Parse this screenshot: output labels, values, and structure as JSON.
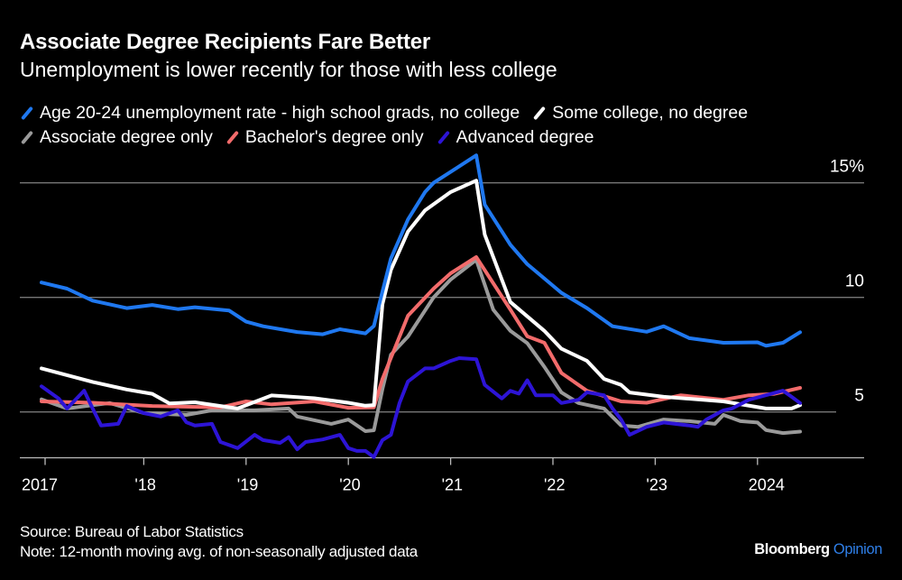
{
  "chart_data": {
    "type": "line",
    "title": "Associate Degree Recipients Fare Better",
    "subtitle": "Unemployment is lower recently for those with less college",
    "ylim": [
      3,
      15.5
    ],
    "y_ticks": [
      {
        "value": 15,
        "label": "15%"
      },
      {
        "value": 10,
        "label": "10"
      },
      {
        "value": 5,
        "label": "5"
      }
    ],
    "x_ticks": [
      {
        "date": "2017-01",
        "label": "2017"
      },
      {
        "date": "2018-01",
        "label": "'18"
      },
      {
        "date": "2019-01",
        "label": "'19"
      },
      {
        "date": "2020-01",
        "label": "'20"
      },
      {
        "date": "2021-01",
        "label": "'21"
      },
      {
        "date": "2022-01",
        "label": "'22"
      },
      {
        "date": "2023-01",
        "label": "'23"
      },
      {
        "date": "2024-01",
        "label": "2024"
      }
    ],
    "grid": true,
    "legend_placement": "top-left",
    "series": [
      {
        "name": "Age 20-24 unemployment rate - high school grads, no college",
        "color": "#1f78f0",
        "points": [
          [
            "2017-01",
            10.65
          ],
          [
            "2017-04",
            10.38
          ],
          [
            "2017-07",
            9.86
          ],
          [
            "2017-11",
            9.53
          ],
          [
            "2018-02",
            9.67
          ],
          [
            "2018-05",
            9.49
          ],
          [
            "2018-07",
            9.57
          ],
          [
            "2018-11",
            9.43
          ],
          [
            "2019-01",
            8.94
          ],
          [
            "2019-03",
            8.74
          ],
          [
            "2019-07",
            8.49
          ],
          [
            "2019-10",
            8.39
          ],
          [
            "2019-12",
            8.61
          ],
          [
            "2020-03",
            8.43
          ],
          [
            "2020-04",
            8.75
          ],
          [
            "2020-05",
            10.26
          ],
          [
            "2020-06",
            11.7
          ],
          [
            "2020-08",
            13.4
          ],
          [
            "2020-10",
            14.6
          ],
          [
            "2020-11",
            15.0
          ],
          [
            "2021-04",
            16.2
          ],
          [
            "2021-05",
            14.05
          ],
          [
            "2021-08",
            12.3
          ],
          [
            "2021-10",
            11.45
          ],
          [
            "2022-02",
            10.2
          ],
          [
            "2022-05",
            9.53
          ],
          [
            "2022-08",
            8.74
          ],
          [
            "2022-12",
            8.5
          ],
          [
            "2023-02",
            8.74
          ],
          [
            "2023-05",
            8.22
          ],
          [
            "2023-09",
            8.02
          ],
          [
            "2024-01",
            8.04
          ],
          [
            "2024-02",
            7.89
          ],
          [
            "2024-04",
            8.02
          ],
          [
            "2024-06",
            8.48
          ]
        ]
      },
      {
        "name": "Some college, no degree",
        "color": "#ffffff",
        "points": [
          [
            "2017-01",
            6.9
          ],
          [
            "2017-07",
            6.31
          ],
          [
            "2017-11",
            5.98
          ],
          [
            "2018-02",
            5.79
          ],
          [
            "2018-04",
            5.37
          ],
          [
            "2018-07",
            5.42
          ],
          [
            "2018-12",
            5.15
          ],
          [
            "2019-04",
            5.72
          ],
          [
            "2019-09",
            5.6
          ],
          [
            "2020-01",
            5.4
          ],
          [
            "2020-03",
            5.27
          ],
          [
            "2020-04",
            5.3
          ],
          [
            "2020-05",
            9.7
          ],
          [
            "2020-06",
            11.2
          ],
          [
            "2020-08",
            12.87
          ],
          [
            "2020-10",
            13.8
          ],
          [
            "2021-01",
            14.6
          ],
          [
            "2021-04",
            15.1
          ],
          [
            "2021-05",
            12.74
          ],
          [
            "2021-08",
            9.8
          ],
          [
            "2021-12",
            8.54
          ],
          [
            "2022-02",
            7.76
          ],
          [
            "2022-05",
            7.23
          ],
          [
            "2022-07",
            6.44
          ],
          [
            "2022-09",
            6.18
          ],
          [
            "2022-10",
            5.85
          ],
          [
            "2023-02",
            5.66
          ],
          [
            "2023-09",
            5.46
          ],
          [
            "2024-02",
            5.15
          ],
          [
            "2024-05",
            5.15
          ],
          [
            "2024-06",
            5.3
          ]
        ]
      },
      {
        "name": "Associate degree only",
        "color": "#9a9a9a",
        "points": [
          [
            "2017-01",
            5.55
          ],
          [
            "2017-04",
            5.15
          ],
          [
            "2017-09",
            5.39
          ],
          [
            "2018-01",
            4.95
          ],
          [
            "2018-06",
            4.87
          ],
          [
            "2018-09",
            5.07
          ],
          [
            "2019-02",
            5.07
          ],
          [
            "2019-06",
            5.15
          ],
          [
            "2019-07",
            4.8
          ],
          [
            "2019-11",
            4.48
          ],
          [
            "2020-01",
            4.67
          ],
          [
            "2020-03",
            4.16
          ],
          [
            "2020-04",
            4.2
          ],
          [
            "2020-05",
            6.0
          ],
          [
            "2020-06",
            7.5
          ],
          [
            "2020-08",
            8.29
          ],
          [
            "2020-11",
            10.0
          ],
          [
            "2021-01",
            10.78
          ],
          [
            "2021-04",
            11.64
          ],
          [
            "2021-06",
            9.47
          ],
          [
            "2021-08",
            8.54
          ],
          [
            "2021-10",
            8.0
          ],
          [
            "2021-12",
            6.97
          ],
          [
            "2022-02",
            5.85
          ],
          [
            "2022-04",
            5.39
          ],
          [
            "2022-07",
            5.15
          ],
          [
            "2022-09",
            4.41
          ],
          [
            "2022-11",
            4.35
          ],
          [
            "2023-02",
            4.67
          ],
          [
            "2023-05",
            4.6
          ],
          [
            "2023-08",
            4.48
          ],
          [
            "2023-09",
            4.87
          ],
          [
            "2023-11",
            4.6
          ],
          [
            "2024-01",
            4.54
          ],
          [
            "2024-02",
            4.21
          ],
          [
            "2024-04",
            4.08
          ],
          [
            "2024-06",
            4.14
          ]
        ]
      },
      {
        "name": "Bachelor's degree only",
        "color": "#f26b6b",
        "points": [
          [
            "2017-01",
            5.46
          ],
          [
            "2017-07",
            5.4
          ],
          [
            "2018-02",
            5.26
          ],
          [
            "2018-10",
            5.2
          ],
          [
            "2019-01",
            5.46
          ],
          [
            "2019-04",
            5.33
          ],
          [
            "2019-09",
            5.46
          ],
          [
            "2020-01",
            5.18
          ],
          [
            "2020-04",
            5.2
          ],
          [
            "2020-05",
            6.44
          ],
          [
            "2020-08",
            9.2
          ],
          [
            "2020-11",
            10.38
          ],
          [
            "2021-01",
            11.05
          ],
          [
            "2021-04",
            11.76
          ],
          [
            "2021-08",
            9.47
          ],
          [
            "2021-10",
            8.3
          ],
          [
            "2021-12",
            8.02
          ],
          [
            "2022-02",
            6.7
          ],
          [
            "2022-05",
            5.92
          ],
          [
            "2022-09",
            5.46
          ],
          [
            "2022-12",
            5.4
          ],
          [
            "2023-04",
            5.73
          ],
          [
            "2023-09",
            5.53
          ],
          [
            "2023-12",
            5.73
          ],
          [
            "2024-03",
            5.79
          ],
          [
            "2024-06",
            6.05
          ]
        ]
      },
      {
        "name": "Advanced degree",
        "color": "#2d14d6",
        "points": [
          [
            "2017-01",
            6.12
          ],
          [
            "2017-03",
            5.59
          ],
          [
            "2017-04",
            5.15
          ],
          [
            "2017-06",
            5.93
          ],
          [
            "2017-07",
            5.15
          ],
          [
            "2017-08",
            4.41
          ],
          [
            "2017-10",
            4.48
          ],
          [
            "2017-11",
            5.26
          ],
          [
            "2018-01",
            4.95
          ],
          [
            "2018-03",
            4.8
          ],
          [
            "2018-05",
            5.07
          ],
          [
            "2018-06",
            4.55
          ],
          [
            "2018-07",
            4.41
          ],
          [
            "2018-09",
            4.48
          ],
          [
            "2018-10",
            3.69
          ],
          [
            "2018-12",
            3.42
          ],
          [
            "2019-02",
            4.0
          ],
          [
            "2019-03",
            3.77
          ],
          [
            "2019-05",
            3.65
          ],
          [
            "2019-06",
            3.9
          ],
          [
            "2019-07",
            3.37
          ],
          [
            "2019-08",
            3.69
          ],
          [
            "2019-10",
            3.8
          ],
          [
            "2019-12",
            4.0
          ],
          [
            "2020-01",
            3.42
          ],
          [
            "2020-02",
            3.3
          ],
          [
            "2020-03",
            3.3
          ],
          [
            "2020-04",
            3.03
          ],
          [
            "2020-05",
            3.77
          ],
          [
            "2020-06",
            4.0
          ],
          [
            "2020-07",
            5.39
          ],
          [
            "2020-08",
            6.33
          ],
          [
            "2020-10",
            6.9
          ],
          [
            "2020-11",
            6.9
          ],
          [
            "2021-01",
            7.23
          ],
          [
            "2021-02",
            7.35
          ],
          [
            "2021-04",
            7.3
          ],
          [
            "2021-05",
            6.18
          ],
          [
            "2021-07",
            5.59
          ],
          [
            "2021-08",
            5.92
          ],
          [
            "2021-09",
            5.8
          ],
          [
            "2021-10",
            6.38
          ],
          [
            "2021-11",
            5.73
          ],
          [
            "2022-01",
            5.73
          ],
          [
            "2022-02",
            5.39
          ],
          [
            "2022-04",
            5.53
          ],
          [
            "2022-05",
            5.86
          ],
          [
            "2022-07",
            5.73
          ],
          [
            "2022-08",
            5.15
          ],
          [
            "2022-09",
            4.67
          ],
          [
            "2022-10",
            4.0
          ],
          [
            "2022-12",
            4.35
          ],
          [
            "2023-02",
            4.54
          ],
          [
            "2023-05",
            4.41
          ],
          [
            "2023-06",
            4.35
          ],
          [
            "2023-07",
            4.67
          ],
          [
            "2023-09",
            5.07
          ],
          [
            "2023-10",
            5.15
          ],
          [
            "2023-12",
            5.53
          ],
          [
            "2024-04",
            5.93
          ],
          [
            "2024-05",
            5.66
          ],
          [
            "2024-06",
            5.39
          ]
        ]
      }
    ]
  },
  "footer": {
    "source": "Source: Bureau of Labor Statistics",
    "note": "Note: 12-month moving avg. of non-seasonally adjusted data",
    "brand": "Bloomberg",
    "brand_accent": "Opinion"
  }
}
